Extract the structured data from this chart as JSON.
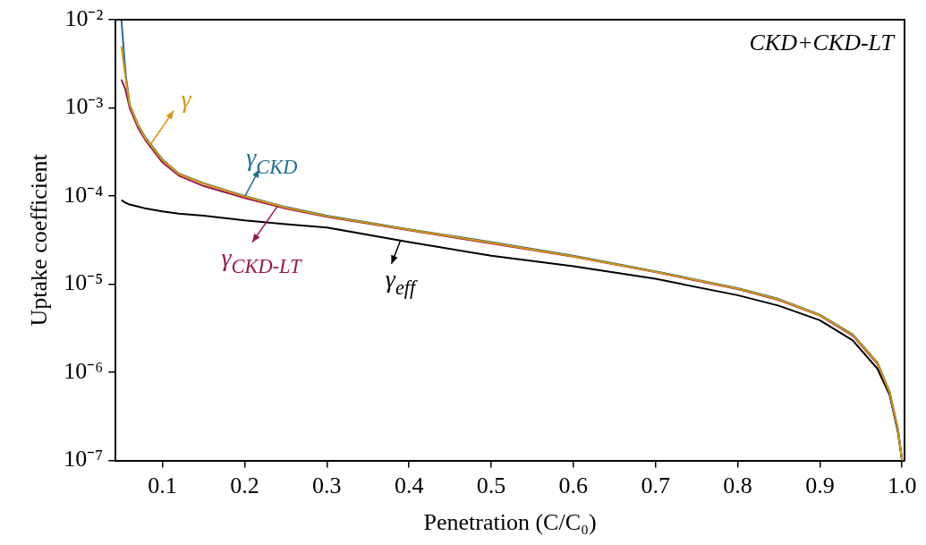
{
  "chart_data": {
    "type": "line",
    "xlabel": "Penetration (C/C₀)",
    "ylabel": "Uptake coefficient",
    "log": "y",
    "xlim": [
      0.043,
      1.003
    ],
    "xticks": [
      {
        "value": 0.1,
        "label": "0.1"
      },
      {
        "value": 0.2,
        "label": "0.2"
      },
      {
        "value": 0.3,
        "label": "0.3"
      },
      {
        "value": 0.4,
        "label": "0.4"
      },
      {
        "value": 0.5,
        "label": "0.5"
      },
      {
        "value": 0.6,
        "label": "0.6"
      },
      {
        "value": 0.7,
        "label": "0.7"
      },
      {
        "value": 0.8,
        "label": "0.8"
      },
      {
        "value": 0.9,
        "label": "0.9"
      },
      {
        "value": 1.0,
        "label": "1.0"
      }
    ],
    "ylim": [
      1e-07,
      0.01
    ],
    "yticks": [
      {
        "value": 1e-07,
        "label": "10⁻⁷"
      },
      {
        "value": 1e-06,
        "label": "10⁻⁶"
      },
      {
        "value": 1e-05,
        "label": "10⁻⁵"
      },
      {
        "value": 0.0001,
        "label": "10⁻⁴"
      },
      {
        "value": 0.001,
        "label": "10⁻³"
      },
      {
        "value": 0.01,
        "label": "10⁻²"
      }
    ],
    "x": [
      0.05,
      0.055,
      0.06,
      0.07,
      0.08,
      0.1,
      0.12,
      0.15,
      0.2,
      0.25,
      0.3,
      0.4,
      0.5,
      0.6,
      0.7,
      0.8,
      0.85,
      0.9,
      0.94,
      0.97,
      0.985,
      0.995,
      1.0
    ],
    "series": [
      {
        "name": "γ",
        "color": "#d4960f",
        "values": [
          0.005,
          0.0022,
          0.00108,
          0.00064,
          0.00044,
          0.000255,
          0.000178,
          0.000138,
          9.9e-05,
          7.4e-05,
          5.9e-05,
          4.15e-05,
          2.95e-05,
          2.07e-05,
          1.38e-05,
          8.9e-06,
          6.7e-06,
          4.45e-06,
          2.65e-06,
          1.28e-06,
          5.9e-07,
          2.25e-07,
          1e-07
        ]
      },
      {
        "name": "γ$_{CKD}$",
        "color": "#1f6f8f",
        "values": [
          0.01,
          0.0025,
          0.0011,
          0.00065,
          0.00045,
          0.00026,
          0.00018,
          0.00014,
          0.0001,
          7.5e-05,
          6e-05,
          4.2e-05,
          3e-05,
          2.1e-05,
          1.4e-05,
          9e-06,
          6.8e-06,
          4.5e-06,
          2.7e-06,
          1.3e-06,
          6e-07,
          2.3e-07,
          1e-07
        ]
      },
      {
        "name": "γ$_{CKD-LT}$",
        "color": "#9c1550",
        "values": [
          0.0021,
          0.0016,
          0.001,
          0.0006,
          0.00042,
          0.00024,
          0.00017,
          0.00013,
          9.5e-05,
          7.2e-05,
          5.8e-05,
          4.1e-05,
          2.9e-05,
          2.05e-05,
          1.37e-05,
          8.8e-06,
          6.6e-06,
          4.4e-06,
          2.6e-06,
          1.25e-06,
          5.8e-07,
          2.2e-07,
          1e-07
        ]
      },
      {
        "name": "γ$_{eff}$",
        "color": "#000000",
        "values": [
          9e-05,
          8.4e-05,
          8e-05,
          7.6e-05,
          7.2e-05,
          6.7e-05,
          6.3e-05,
          6e-05,
          5.3e-05,
          4.8e-05,
          4.4e-05,
          3e-05,
          2.1e-05,
          1.6e-05,
          1.15e-05,
          7.5e-06,
          5.7e-06,
          3.9e-06,
          2.3e-06,
          1.1e-06,
          5.5e-07,
          2.1e-07,
          1e-07
        ]
      }
    ],
    "legend": "left",
    "annotations": [
      "CKD+CKD-LT"
    ]
  }
}
